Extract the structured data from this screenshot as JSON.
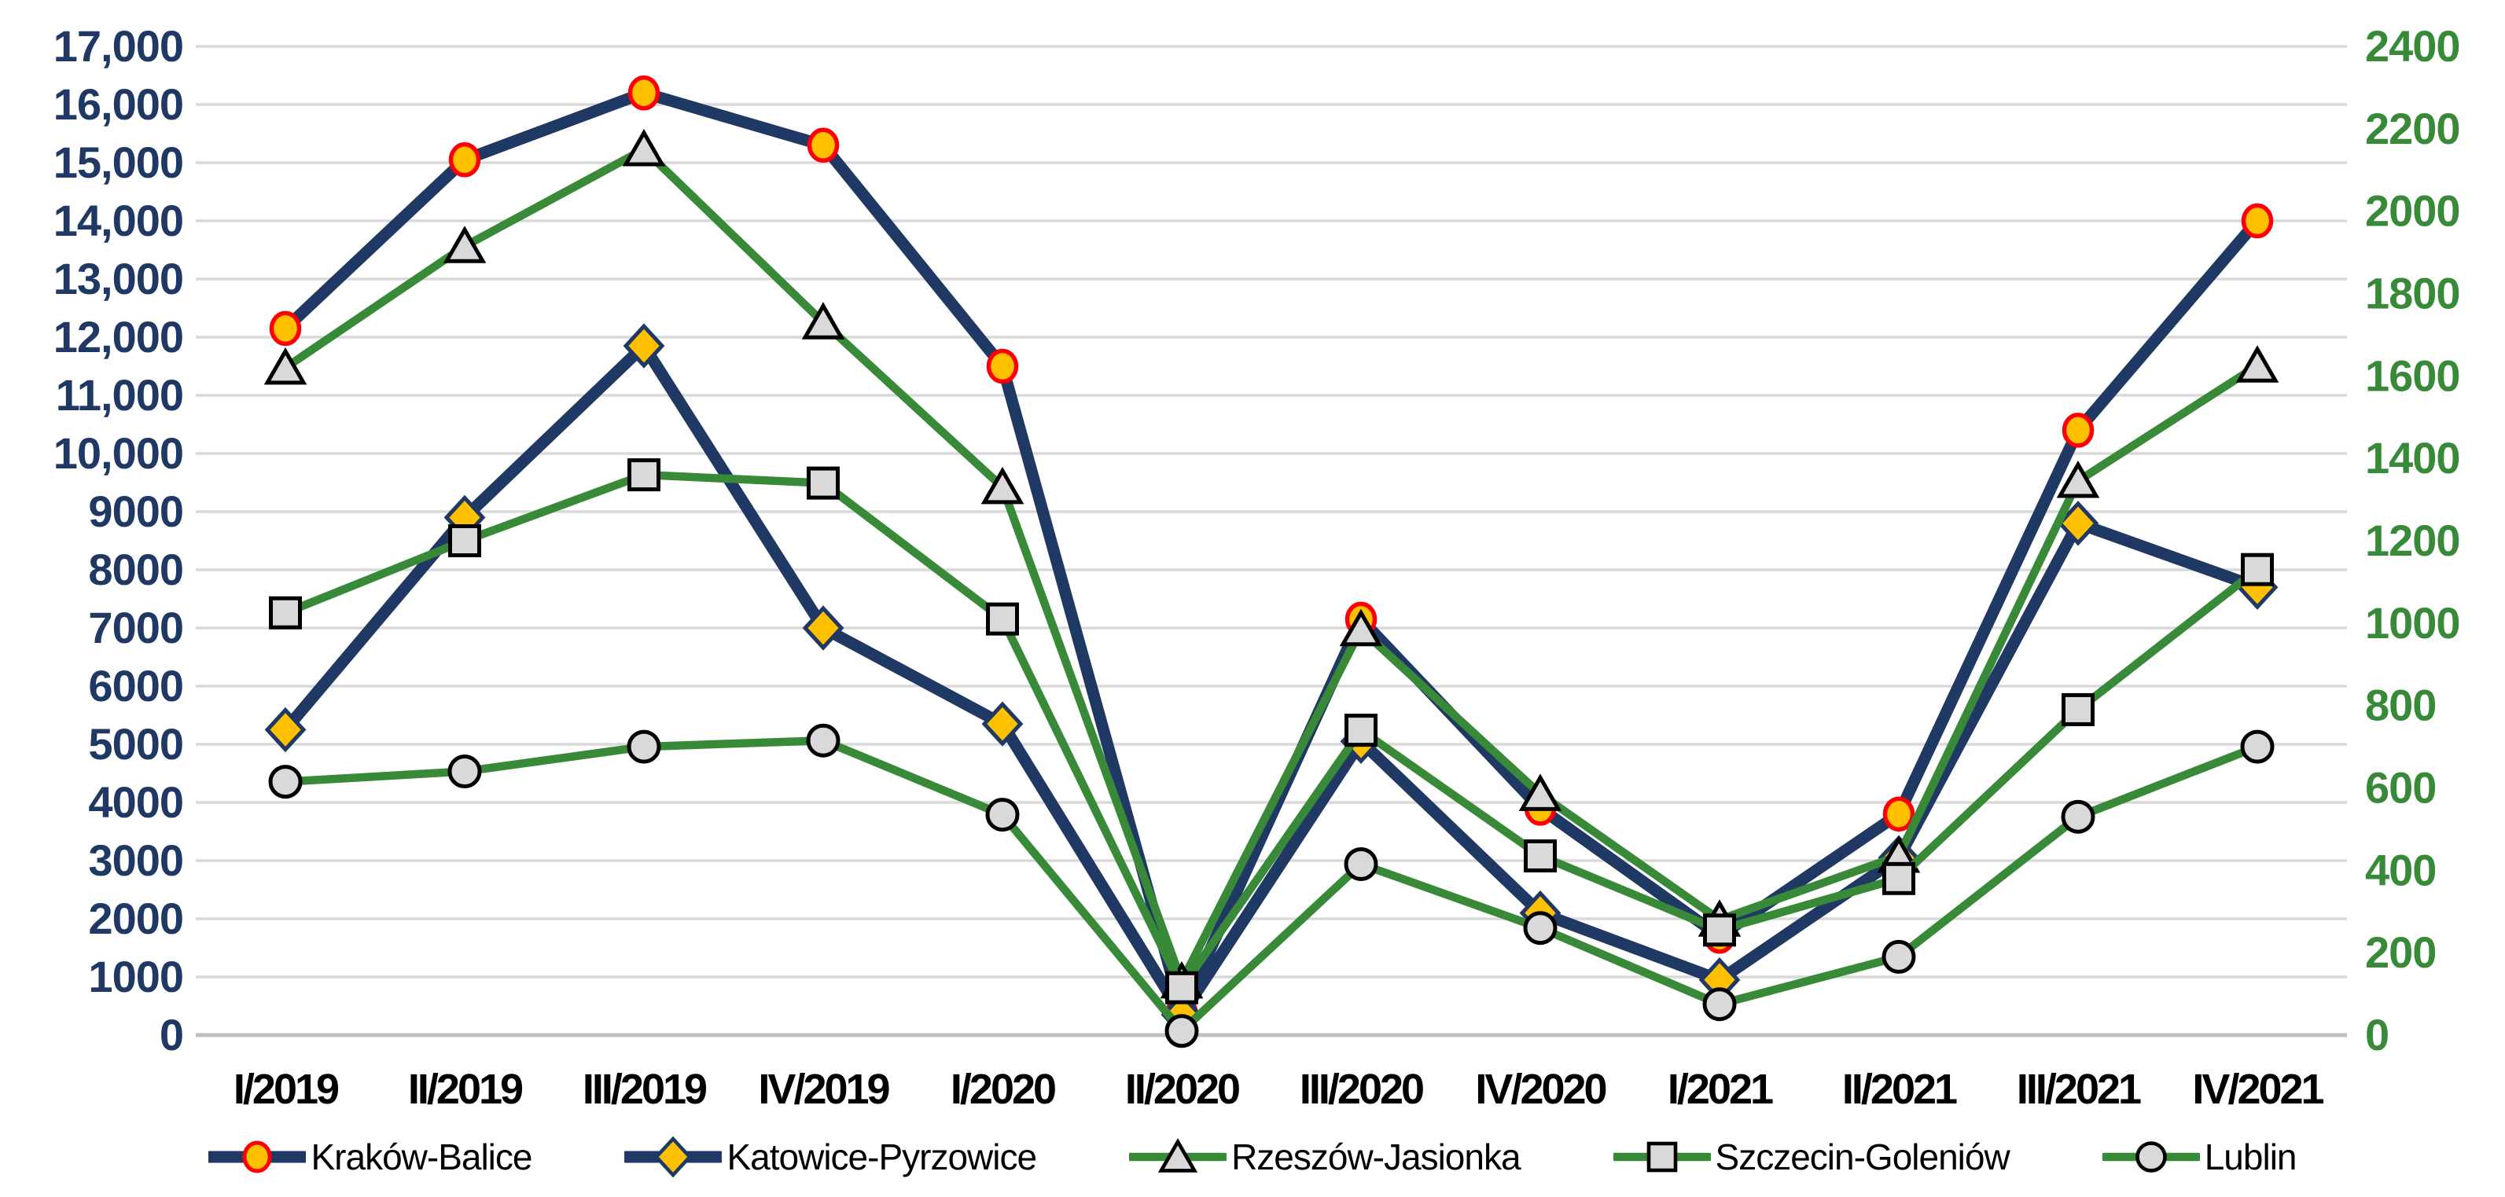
{
  "chart_data": {
    "type": "line",
    "title": "",
    "categories": [
      "I/2019",
      "II/2019",
      "III/2019",
      "IV/2019",
      "I/2020",
      "II/2020",
      "III/2020",
      "IV/2020",
      "I/2021",
      "II/2021",
      "III/2021",
      "IV/2021"
    ],
    "series": [
      {
        "name": "Kraków-Balice",
        "axis": "left",
        "marker": "circle-orange",
        "line_color": "#1F3864",
        "marker_fill": "#FFC000",
        "marker_stroke": "#FF0000",
        "values": [
          12150,
          15050,
          16200,
          15300,
          11500,
          400,
          7150,
          3900,
          1700,
          3800,
          10400,
          14000
        ]
      },
      {
        "name": "Katowice-Pyrzowice",
        "axis": "left",
        "marker": "diamond",
        "line_color": "#1F3864",
        "marker_fill": "#FFC000",
        "marker_stroke": "#1F3864",
        "values": [
          5250,
          8900,
          11850,
          7000,
          5350,
          350,
          5050,
          2100,
          950,
          3050,
          8800,
          7700
        ]
      },
      {
        "name": "Rzeszów-Jasionka",
        "axis": "right",
        "marker": "triangle",
        "line_color": "#388A38",
        "marker_fill": "#D9D9D9",
        "marker_stroke": "#000000",
        "values": [
          1620,
          1915,
          2150,
          1730,
          1330,
          130,
          985,
          585,
          280,
          435,
          1345,
          1625
        ]
      },
      {
        "name": "Szczecin-Goleniów",
        "axis": "right",
        "marker": "square",
        "line_color": "#388A38",
        "marker_fill": "#D9D9D9",
        "marker_stroke": "#000000",
        "values": [
          1025,
          1200,
          1360,
          1340,
          1010,
          115,
          740,
          435,
          255,
          380,
          790,
          1130
        ]
      },
      {
        "name": "Lublin",
        "axis": "right",
        "marker": "circle-gray",
        "line_color": "#388A38",
        "marker_fill": "#D9D9D9",
        "marker_stroke": "#000000",
        "values": [
          615,
          640,
          700,
          715,
          535,
          10,
          415,
          260,
          75,
          190,
          530,
          700
        ]
      }
    ],
    "left_axis": {
      "min": 0,
      "max": 17000,
      "step": 1000,
      "color": "#1F3864",
      "tick_labels": [
        "17,000",
        "16,000",
        "15,000",
        "14,000",
        "13,000",
        "12,000",
        "11,000",
        "10,000",
        "9000",
        "8000",
        "7000",
        "6000",
        "5000",
        "4000",
        "3000",
        "2000",
        "1000",
        "0"
      ]
    },
    "right_axis": {
      "min": 0,
      "max": 2400,
      "step": 200,
      "color": "#388A38",
      "tick_labels": [
        "2400",
        "2200",
        "2000",
        "1800",
        "1600",
        "1400",
        "1200",
        "1000",
        "800",
        "600",
        "400",
        "200",
        "0"
      ]
    },
    "grid": true,
    "gridline_color": "#D9D9D9",
    "baseline_color": "#BFBFBF",
    "legend_position": "bottom",
    "xlabel": "",
    "ylabel": ""
  }
}
